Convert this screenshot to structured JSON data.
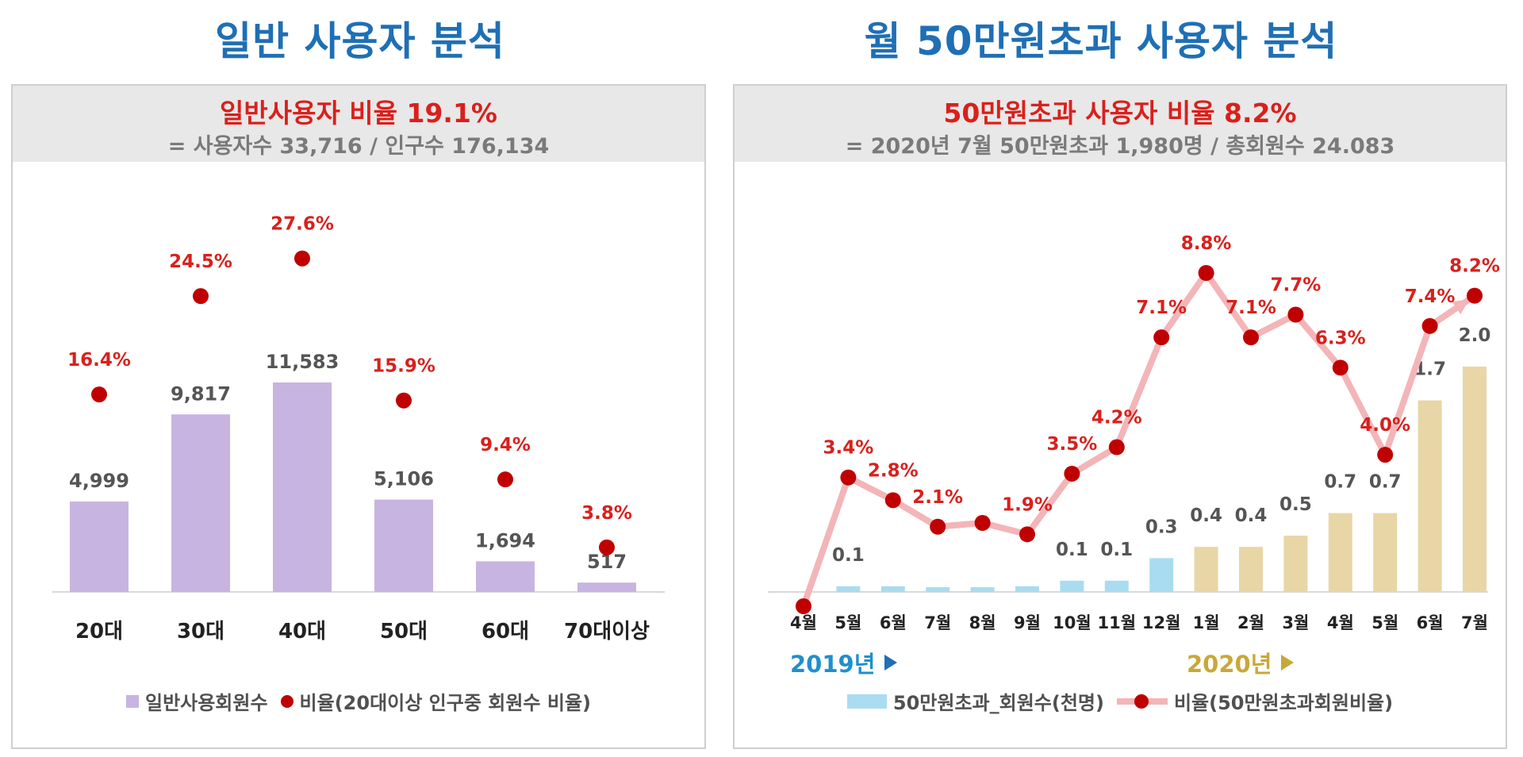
{
  "left": {
    "section_title": "일반 사용자 분석",
    "headline": "일반사용자 비율 19.1%",
    "subline": "= 사용자수 33,716 / 인구수 176,134",
    "legend": {
      "bar": "일반사용회원수",
      "dot": "비율(20대이상 인구중 회원수 비율)"
    }
  },
  "right": {
    "section_title": "월 50만원초과 사용자 분석",
    "headline": "50만원초과 사용자 비율 8.2%",
    "subline": "= 2020년 7월 50만원초과 1,980명 / 총회원수 24.083",
    "year_2019": "2019년",
    "year_2020": "2020년",
    "legend": {
      "bar": "50만원초과_회원수(천명)",
      "line": "비율(50만원초과회원비율)"
    }
  },
  "colors": {
    "title_blue": "#1f6fb5",
    "accent_red": "#d9201c",
    "dot_red": "#c00000",
    "purple_bar": "#c8b4e0",
    "blue_bar": "#a9dcf0",
    "gold_bar": "#e8d6a6",
    "pink_line": "#f3b5b8"
  },
  "chart_data": [
    {
      "type": "bar",
      "categories": [
        "20대",
        "30대",
        "40대",
        "50대",
        "60대",
        "70대이상"
      ],
      "series": [
        {
          "name": "일반사용회원수",
          "values": [
            4999,
            9817,
            11583,
            5106,
            1694,
            517
          ],
          "labels": [
            "4,999",
            "9,817",
            "11,583",
            "5,106",
            "1,694",
            "517"
          ]
        },
        {
          "name": "비율(20대이상 인구중 회원수 비율)",
          "values": [
            16.4,
            24.5,
            27.6,
            15.9,
            9.4,
            3.8
          ],
          "labels": [
            "16.4%",
            "24.5%",
            "27.6%",
            "15.9%",
            "9.4%",
            "3.8%"
          ]
        }
      ]
    },
    {
      "type": "bar",
      "categories": [
        "4월",
        "5월",
        "6월",
        "7월",
        "8월",
        "9월",
        "10월",
        "11월",
        "12월",
        "1월",
        "2월",
        "3월",
        "4월",
        "5월",
        "6월",
        "7월"
      ],
      "series": [
        {
          "name": "50만원초과_회원수(천명)",
          "values": [
            0.0,
            0.05,
            0.05,
            0.04,
            0.04,
            0.05,
            0.1,
            0.1,
            0.3,
            0.4,
            0.4,
            0.5,
            0.7,
            0.7,
            1.7,
            2.0
          ],
          "labels": [
            "",
            "0.1",
            "",
            "",
            "",
            "",
            "0.1",
            "0.1",
            "0.3",
            "0.4",
            "0.4",
            "0.5",
            "0.7",
            "0.7",
            "1.7",
            "2.0"
          ]
        },
        {
          "name": "비율(50만원초과회원비율)",
          "values": [
            0.0,
            3.4,
            2.8,
            2.1,
            2.2,
            1.9,
            3.5,
            4.2,
            7.1,
            8.8,
            7.1,
            7.7,
            6.3,
            4.0,
            7.4,
            8.2
          ],
          "labels": [
            "",
            "3.4%",
            "2.8%",
            "2.1%",
            "",
            "1.9%",
            "3.5%",
            "4.2%",
            "7.1%",
            "8.8%",
            "7.1%",
            "7.7%",
            "6.3%",
            "4.0%",
            "7.4%",
            "8.2%"
          ]
        }
      ]
    }
  ]
}
